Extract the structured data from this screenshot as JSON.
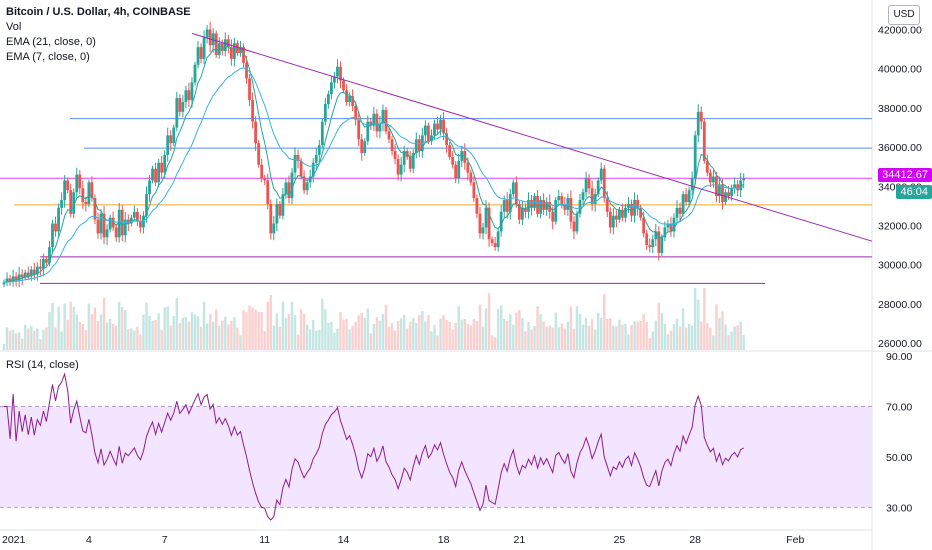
{
  "header": {
    "title": "Bitcoin / U.S. Dollar, 4h, COINBASE",
    "indicators": [
      "Vol",
      "EMA (21, close, 0)",
      "EMA (7, close, 0)"
    ],
    "currency_button": "USD"
  },
  "rsi_title": "RSI (14, close)",
  "price_tags": {
    "last_price": "34412.67",
    "countdown": "46:04",
    "last_price_color": "#d500f9",
    "countdown_color": "#26a69a"
  },
  "colors": {
    "up": "#26a69a",
    "down": "#ef5350",
    "ema_fast": "#26a69a",
    "ema_slow": "#3bb3e4",
    "trendline": "#9c27b0",
    "rsi_line": "#8e1d8e",
    "rsi_band": "#f3e5ff",
    "level_blue": "#5b8def",
    "level_orange": "#f5a623",
    "level_purple": "#9c27b0",
    "level_magenta": "#e040fb"
  },
  "chart_data": {
    "type": "candlestick",
    "price_axis": {
      "ticks": [
        26000,
        28000,
        30000,
        32000,
        34000,
        36000,
        38000,
        40000,
        42000
      ],
      "tick_labels": [
        "26000.00",
        "28000.00",
        "30000.00",
        "32000.00",
        "34000.00",
        "36000.00",
        "38000.00",
        "40000.00",
        "42000.00"
      ],
      "range": [
        25650,
        43300
      ]
    },
    "rsi_axis": {
      "ticks": [
        30,
        50,
        70,
        90
      ],
      "tick_labels": [
        "30.00",
        "50.00",
        "70.00",
        "90.00"
      ],
      "range": [
        25,
        92
      ],
      "band": [
        30,
        70
      ]
    },
    "time_axis": {
      "labels": [
        "2021",
        "4",
        "7",
        "11",
        "14",
        "18",
        "21",
        "25",
        "28",
        "Feb"
      ],
      "label_bar_index": [
        0,
        28,
        53,
        86,
        112,
        145,
        170,
        203,
        228,
        261
      ],
      "bars_total": 285
    },
    "close_prices": [
      29100,
      29300,
      29150,
      29400,
      29200,
      29500,
      29350,
      29600,
      29400,
      29750,
      29500,
      29900,
      29800,
      30300,
      30100,
      30900,
      32100,
      31700,
      32900,
      33300,
      34300,
      33800,
      32600,
      33700,
      34600,
      33900,
      33200,
      33100,
      34200,
      33400,
      32300,
      31600,
      32600,
      31400,
      31800,
      32400,
      31900,
      31400,
      32800,
      31500,
      32300,
      32100,
      32400,
      32700,
      32200,
      31900,
      32500,
      33600,
      34300,
      34900,
      34200,
      35200,
      34700,
      35600,
      36600,
      36200,
      37000,
      38500,
      37800,
      38300,
      38900,
      38400,
      39300,
      40200,
      41100,
      40500,
      41600,
      42000,
      41200,
      41800,
      40700,
      41300,
      40900,
      41500,
      41100,
      40500,
      41300,
      40800,
      41100,
      40300,
      39500,
      38400,
      37300,
      36200,
      35100,
      34400,
      34300,
      33100,
      31600,
      32100,
      33100,
      32500,
      33600,
      34200,
      33400,
      34700,
      35600,
      35300,
      34500,
      33800,
      34200,
      34500,
      35200,
      35600,
      36100,
      37300,
      38200,
      38700,
      39300,
      39600,
      40100,
      39400,
      38900,
      38300,
      38600,
      38100,
      37400,
      36400,
      35700,
      36300,
      37300,
      37100,
      37700,
      36800,
      37200,
      37900,
      36800,
      36400,
      35800,
      35400,
      34600,
      35100,
      35800,
      35500,
      34900,
      35700,
      36400,
      35800,
      36600,
      37100,
      36300,
      36600,
      37200,
      36900,
      37400,
      36700,
      36100,
      35500,
      35100,
      34400,
      35300,
      35800,
      35200,
      34700,
      34200,
      33400,
      32600,
      31600,
      31900,
      32900,
      31300,
      31100,
      30900,
      31700,
      32700,
      33300,
      32700,
      33600,
      34200,
      33100,
      32300,
      32900,
      32700,
      33300,
      32900,
      33500,
      32600,
      33300,
      32800,
      33200,
      32700,
      32200,
      33300,
      33500,
      33100,
      32800,
      33400,
      32200,
      31700,
      32600,
      33300,
      33700,
      34400,
      33900,
      33100,
      33600,
      34300,
      34900,
      33400,
      32700,
      31900,
      32500,
      32300,
      32800,
      32400,
      32900,
      33100,
      32500,
      33300,
      32900,
      32400,
      31600,
      31000,
      30900,
      31300,
      31700,
      30600,
      31400,
      31900,
      32100,
      31700,
      32400,
      32900,
      32600,
      33600,
      33200,
      33800,
      34400,
      36600,
      37800,
      37300,
      35300,
      34700,
      34200,
      34500,
      33500,
      34100,
      33200,
      33700,
      33500,
      33900,
      34100,
      33800,
      34300,
      34400
    ]
  }
}
